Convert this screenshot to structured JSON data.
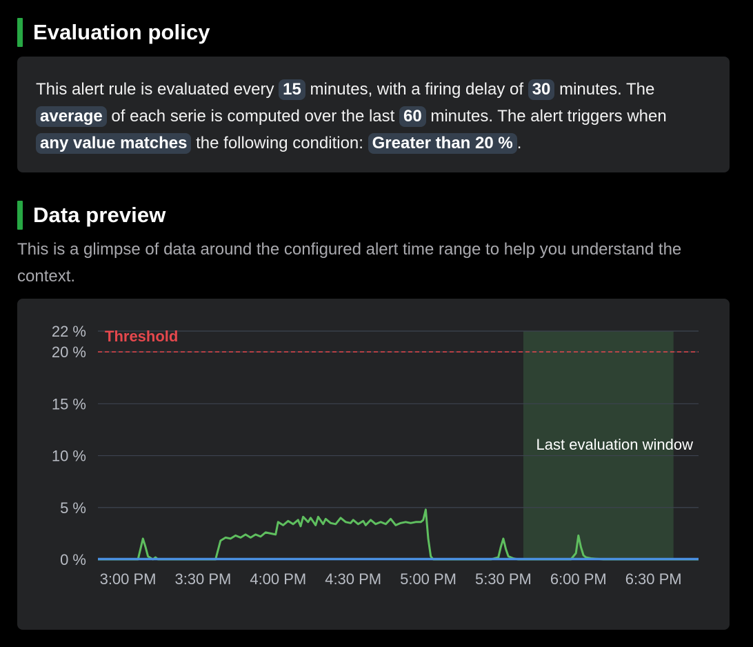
{
  "evaluation": {
    "title": "Evaluation policy",
    "parts": {
      "p1": "This alert rule is evaluated every ",
      "interval": "15",
      "p2": " minutes, with a firing delay of ",
      "delay": "30",
      "p3": " minutes. The ",
      "aggregation": "average",
      "p4": " of each serie is computed over the last ",
      "window": "60",
      "p5": " minutes. The alert triggers when ",
      "match": "any value matches",
      "p6": " the following condition: ",
      "condition": "Greater than 20 %",
      "p7": "."
    }
  },
  "preview": {
    "title": "Data preview",
    "description": "This is a glimpse of data around the configured alert time range to help you understand the context."
  },
  "chart_data": {
    "type": "line",
    "title": "",
    "xlabel": "",
    "ylabel": "",
    "x_ticks": [
      "3:00 PM",
      "3:30 PM",
      "4:00 PM",
      "4:30 PM",
      "5:00 PM",
      "5:30 PM",
      "6:00 PM",
      "6:30 PM"
    ],
    "y_ticks": [
      {
        "value": 0,
        "label": "0 %"
      },
      {
        "value": 5,
        "label": "5 %"
      },
      {
        "value": 10,
        "label": "10 %"
      },
      {
        "value": 15,
        "label": "15 %"
      },
      {
        "value": 20,
        "label": "20 %"
      },
      {
        "value": 22,
        "label": "22 %"
      }
    ],
    "ylim": [
      0,
      22
    ],
    "xlim_minutes_after_3pm": [
      -12,
      228
    ],
    "grid": true,
    "threshold": {
      "value": 20,
      "label": "Threshold",
      "color": "#e5484d"
    },
    "evaluation_window": {
      "start_minutes_after_3pm": 158,
      "end_minutes_after_3pm": 218,
      "label": "Last evaluation window"
    },
    "series": [
      {
        "color": "#5fbf5f",
        "points": [
          [
            -12,
            0
          ],
          [
            0,
            0
          ],
          [
            2,
            0
          ],
          [
            4,
            0
          ],
          [
            5,
            1
          ],
          [
            6,
            2
          ],
          [
            7,
            1.2
          ],
          [
            8,
            0.3
          ],
          [
            10,
            0
          ],
          [
            11,
            0.2
          ],
          [
            12,
            0
          ],
          [
            20,
            0
          ],
          [
            30,
            0
          ],
          [
            35,
            0
          ],
          [
            37,
            1.8
          ],
          [
            39,
            2.1
          ],
          [
            41,
            2
          ],
          [
            43,
            2.3
          ],
          [
            45,
            2.1
          ],
          [
            47,
            2.4
          ],
          [
            49,
            2.1
          ],
          [
            51,
            2.4
          ],
          [
            53,
            2.2
          ],
          [
            55,
            2.6
          ],
          [
            57,
            2.5
          ],
          [
            59,
            2.4
          ],
          [
            60,
            3.6
          ],
          [
            62,
            3.3
          ],
          [
            64,
            3.7
          ],
          [
            66,
            3.4
          ],
          [
            68,
            3.8
          ],
          [
            69,
            3.2
          ],
          [
            70,
            4.1
          ],
          [
            72,
            3.6
          ],
          [
            73,
            4
          ],
          [
            75,
            3.3
          ],
          [
            76,
            4.1
          ],
          [
            78,
            3.4
          ],
          [
            79,
            3.9
          ],
          [
            81,
            3.5
          ],
          [
            83,
            3.4
          ],
          [
            85,
            4
          ],
          [
            87,
            3.6
          ],
          [
            89,
            3.5
          ],
          [
            90,
            3.8
          ],
          [
            92,
            3.4
          ],
          [
            94,
            3.7
          ],
          [
            95,
            3.3
          ],
          [
            97,
            3.8
          ],
          [
            99,
            3.4
          ],
          [
            101,
            3.6
          ],
          [
            103,
            3.4
          ],
          [
            105,
            3.9
          ],
          [
            107,
            3.3
          ],
          [
            109,
            3.5
          ],
          [
            111,
            3.6
          ],
          [
            113,
            3.5
          ],
          [
            115,
            3.6
          ],
          [
            117,
            3.6
          ],
          [
            118,
            3.8
          ],
          [
            119,
            4.8
          ],
          [
            120,
            2
          ],
          [
            121,
            0.3
          ],
          [
            122,
            0
          ],
          [
            130,
            0
          ],
          [
            140,
            0
          ],
          [
            145,
            0
          ],
          [
            148,
            0.2
          ],
          [
            149,
            1.2
          ],
          [
            150,
            2
          ],
          [
            151,
            1
          ],
          [
            152,
            0.3
          ],
          [
            154,
            0.1
          ],
          [
            156,
            0
          ],
          [
            160,
            0
          ],
          [
            170,
            0
          ],
          [
            177,
            0
          ],
          [
            179,
            0.6
          ],
          [
            180,
            2.3
          ],
          [
            181,
            1.2
          ],
          [
            182,
            0.4
          ],
          [
            183,
            0.2
          ],
          [
            185,
            0.1
          ],
          [
            190,
            0
          ],
          [
            200,
            0
          ],
          [
            210,
            0
          ],
          [
            218,
            0
          ],
          [
            228,
            0
          ]
        ]
      },
      {
        "color": "#4a90e2",
        "points": [
          [
            -12,
            0.03
          ],
          [
            228,
            0.03
          ]
        ]
      }
    ]
  }
}
